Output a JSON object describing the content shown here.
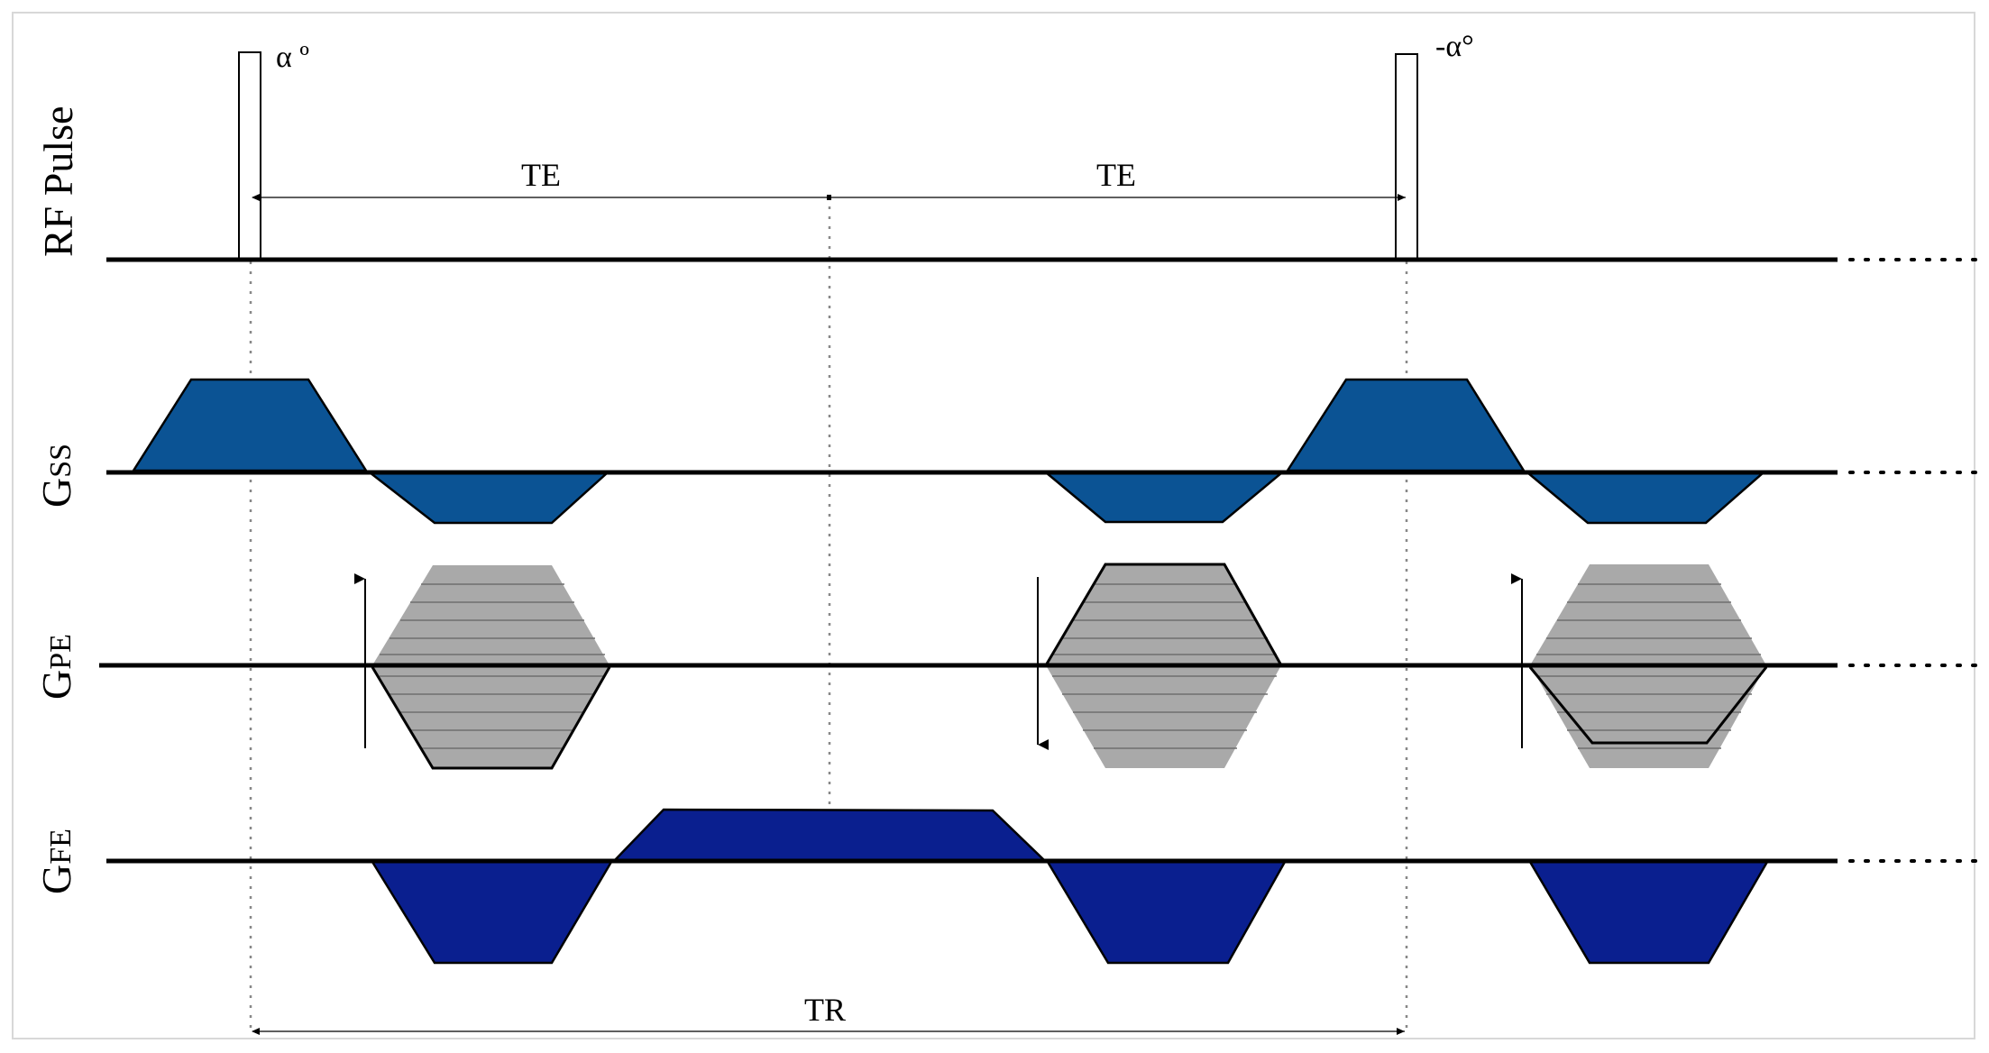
{
  "rows": {
    "rf": {
      "label": "RF Pulse"
    },
    "gss": {
      "label_main": "G",
      "label_sub": "SS"
    },
    "gpe": {
      "label_main": "G",
      "label_sub": "PE"
    },
    "gfe": {
      "label_main": "G",
      "label_sub": "FE"
    }
  },
  "pulses": {
    "first": "α º",
    "second": "-α°"
  },
  "timing": {
    "te1": "TE",
    "te2": "TE",
    "tr": "TR"
  },
  "colors": {
    "ss_blue": "#0b5394",
    "fe_blue": "#0a1f8f",
    "pe_gray": "#a9a9a9",
    "line": "#000000",
    "dotted": "#888888"
  }
}
